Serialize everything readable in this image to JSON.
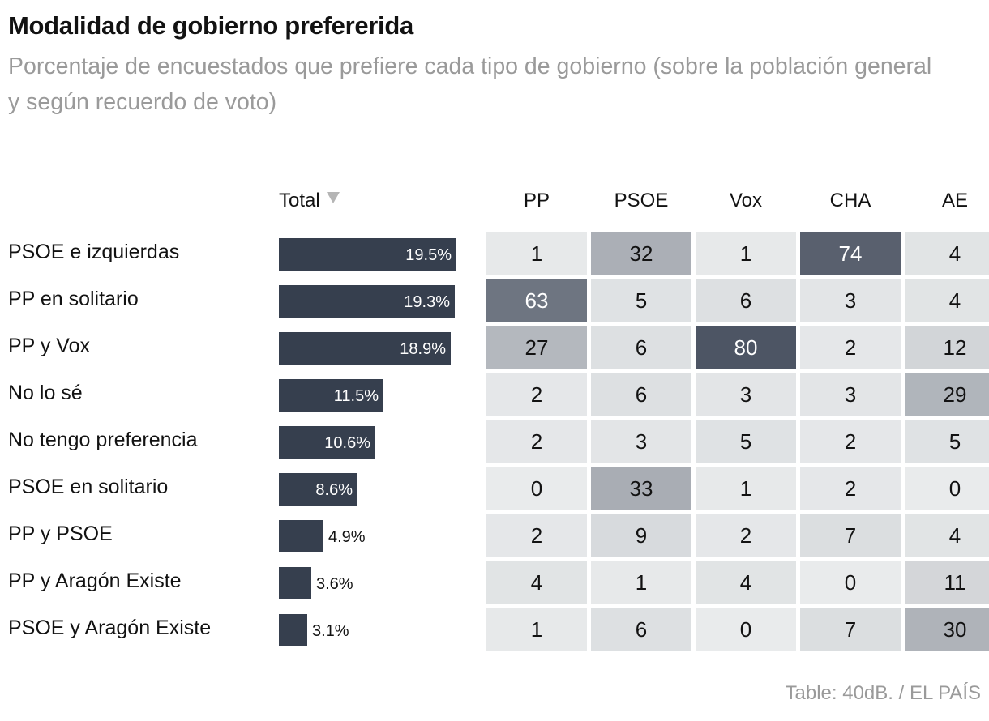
{
  "title": "Modalidad de gobierno prefererida",
  "subtitle": "Porcentaje de encuestados que prefiere cada tipo de gobierno (sobre la población general y según recuerdo de voto)",
  "source": "Table: 40dB. / EL PAÍS",
  "chart_data": {
    "type": "table",
    "total_header": "Total",
    "total_sort_icon": "sort-desc-icon",
    "columns": [
      "PP",
      "PSOE",
      "Vox",
      "CHA",
      "AE"
    ],
    "rows": [
      {
        "label": "PSOE e izquierdas",
        "total": 19.5,
        "total_label": "19.5%",
        "values": [
          1,
          32,
          1,
          74,
          4
        ]
      },
      {
        "label": "PP en solitario",
        "total": 19.3,
        "total_label": "19.3%",
        "values": [
          63,
          5,
          6,
          3,
          4
        ]
      },
      {
        "label": "PP y Vox",
        "total": 18.9,
        "total_label": "18.9%",
        "values": [
          27,
          6,
          80,
          2,
          12
        ]
      },
      {
        "label": "No lo sé",
        "total": 11.5,
        "total_label": "11.5%",
        "values": [
          2,
          6,
          3,
          3,
          29
        ]
      },
      {
        "label": "No tengo preferencia",
        "total": 10.6,
        "total_label": "10.6%",
        "values": [
          2,
          3,
          5,
          2,
          5
        ]
      },
      {
        "label": "PSOE en solitario",
        "total": 8.6,
        "total_label": "8.6%",
        "values": [
          0,
          33,
          1,
          2,
          0
        ]
      },
      {
        "label": "PP y PSOE",
        "total": 4.9,
        "total_label": "4.9%",
        "values": [
          2,
          9,
          2,
          7,
          4
        ]
      },
      {
        "label": "PP y Aragón Existe",
        "total": 3.6,
        "total_label": "3.6%",
        "values": [
          4,
          1,
          4,
          0,
          11
        ]
      },
      {
        "label": "PSOE y Aragón Existe",
        "total": 3.1,
        "total_label": "3.1%",
        "values": [
          1,
          6,
          0,
          7,
          30
        ]
      }
    ],
    "colors": {
      "bar": "#363f4e",
      "cell_low": "#e9ebec",
      "cell_high": "#4d5564"
    }
  }
}
